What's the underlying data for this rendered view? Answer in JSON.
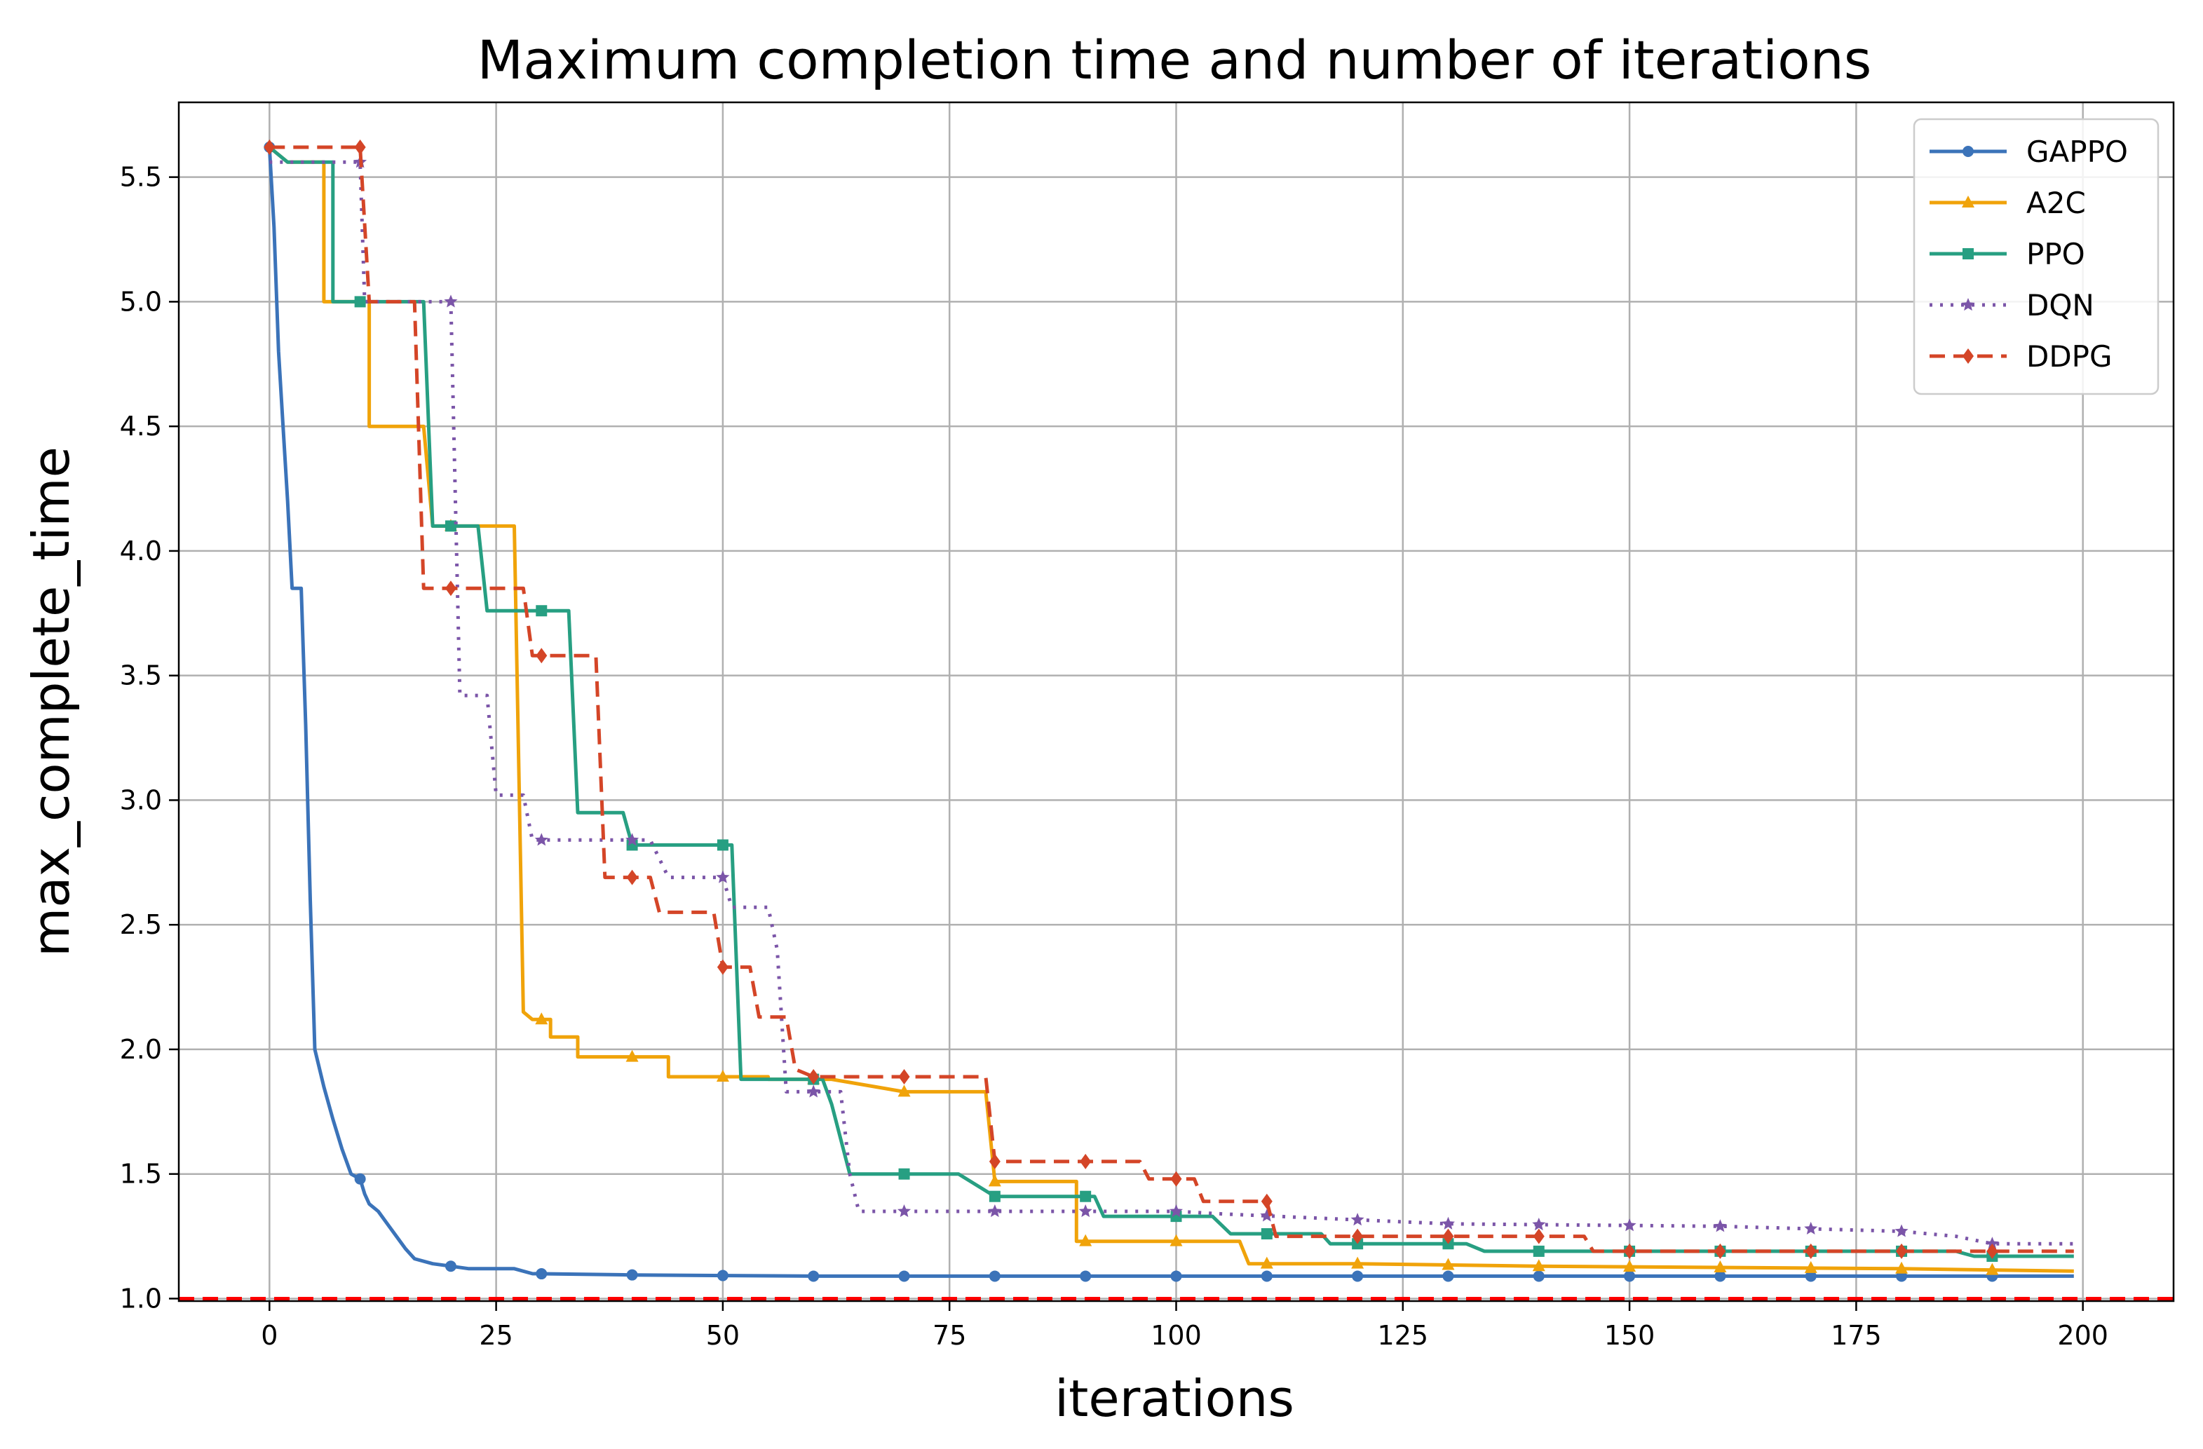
{
  "chart_data": {
    "type": "line",
    "title": "Maximum completion time and number of iterations",
    "xlabel": "iterations",
    "ylabel": "max_complete_time",
    "xlim": [
      -10,
      210
    ],
    "ylim": [
      0.99,
      5.8
    ],
    "x_ticks": [
      0,
      25,
      50,
      75,
      100,
      125,
      150,
      175,
      200
    ],
    "y_ticks": [
      1.0,
      1.5,
      2.0,
      2.5,
      3.0,
      3.5,
      4.0,
      4.5,
      5.0,
      5.5
    ],
    "x_tick_labels": [
      "0",
      "25",
      "50",
      "75",
      "100",
      "125",
      "150",
      "175",
      "200"
    ],
    "y_tick_labels": [
      "1.0",
      "1.5",
      "2.0",
      "2.5",
      "3.0",
      "3.5",
      "4.0",
      "4.5",
      "5.0",
      "5.5"
    ],
    "grid": true,
    "legend_position": "top-right",
    "reference_line": {
      "y": 1.0,
      "color": "#ff0000",
      "style": "dashed"
    },
    "series": [
      {
        "name": "GAPPO",
        "color": "#3b73b9",
        "dash": "solid",
        "marker": "circle",
        "points": [
          [
            0,
            5.62
          ],
          [
            0.5,
            5.3
          ],
          [
            1,
            4.8
          ],
          [
            1.5,
            4.5
          ],
          [
            2,
            4.2
          ],
          [
            2.5,
            3.85
          ],
          [
            3.5,
            3.85
          ],
          [
            4,
            3.3
          ],
          [
            4.5,
            2.6
          ],
          [
            5,
            2.0
          ],
          [
            6,
            1.85
          ],
          [
            7,
            1.72
          ],
          [
            8,
            1.6
          ],
          [
            9,
            1.5
          ],
          [
            10,
            1.48
          ],
          [
            10.5,
            1.42
          ],
          [
            11,
            1.38
          ],
          [
            12,
            1.35
          ],
          [
            13,
            1.3
          ],
          [
            14,
            1.25
          ],
          [
            15,
            1.2
          ],
          [
            16,
            1.16
          ],
          [
            18,
            1.14
          ],
          [
            20,
            1.13
          ],
          [
            22,
            1.12
          ],
          [
            27,
            1.12
          ],
          [
            29,
            1.1
          ],
          [
            40,
            1.095
          ],
          [
            60,
            1.09
          ],
          [
            100,
            1.09
          ],
          [
            199,
            1.09
          ]
        ],
        "marker_x": [
          0,
          10,
          20,
          30,
          40,
          50,
          60,
          70,
          80,
          90,
          100,
          110,
          120,
          130,
          140,
          150,
          160,
          170,
          180,
          190
        ]
      },
      {
        "name": "A2C",
        "color": "#f0a30a",
        "dash": "solid",
        "marker": "triangle",
        "points": [
          [
            0,
            5.62
          ],
          [
            2,
            5.56
          ],
          [
            6,
            5.56
          ],
          [
            6,
            5.0
          ],
          [
            11,
            5.0
          ],
          [
            11,
            4.5
          ],
          [
            17,
            4.5
          ],
          [
            18,
            4.1
          ],
          [
            27,
            4.1
          ],
          [
            28,
            2.15
          ],
          [
            29,
            2.12
          ],
          [
            31,
            2.12
          ],
          [
            31,
            2.05
          ],
          [
            34,
            2.05
          ],
          [
            34,
            1.97
          ],
          [
            44,
            1.97
          ],
          [
            44,
            1.89
          ],
          [
            55,
            1.89
          ],
          [
            55,
            1.88
          ],
          [
            62,
            1.88
          ],
          [
            70,
            1.83
          ],
          [
            79,
            1.83
          ],
          [
            80,
            1.47
          ],
          [
            89,
            1.47
          ],
          [
            89,
            1.23
          ],
          [
            107,
            1.23
          ],
          [
            108,
            1.14
          ],
          [
            120,
            1.14
          ],
          [
            140,
            1.13
          ],
          [
            180,
            1.12
          ],
          [
            199,
            1.11
          ]
        ],
        "marker_x": [
          20,
          30,
          40,
          50,
          60,
          70,
          80,
          90,
          100,
          110,
          120,
          130,
          140,
          150,
          160,
          170,
          180,
          190
        ]
      },
      {
        "name": "PPO",
        "color": "#279f82",
        "dash": "solid",
        "marker": "square",
        "points": [
          [
            0,
            5.62
          ],
          [
            2,
            5.56
          ],
          [
            7,
            5.56
          ],
          [
            7,
            5.0
          ],
          [
            17,
            5.0
          ],
          [
            18,
            4.1
          ],
          [
            23,
            4.1
          ],
          [
            24,
            3.76
          ],
          [
            33,
            3.76
          ],
          [
            34,
            2.95
          ],
          [
            39,
            2.95
          ],
          [
            40,
            2.82
          ],
          [
            51,
            2.82
          ],
          [
            52,
            1.88
          ],
          [
            61,
            1.88
          ],
          [
            62,
            1.78
          ],
          [
            64,
            1.5
          ],
          [
            76,
            1.5
          ],
          [
            80,
            1.41
          ],
          [
            91,
            1.41
          ],
          [
            92,
            1.33
          ],
          [
            104,
            1.33
          ],
          [
            106,
            1.26
          ],
          [
            116,
            1.26
          ],
          [
            117,
            1.22
          ],
          [
            132,
            1.22
          ],
          [
            134,
            1.19
          ],
          [
            170,
            1.19
          ],
          [
            186,
            1.19
          ],
          [
            188,
            1.17
          ],
          [
            199,
            1.17
          ]
        ],
        "marker_x": [
          10,
          20,
          30,
          40,
          50,
          60,
          70,
          80,
          90,
          100,
          110,
          120,
          130,
          140,
          150,
          160,
          170,
          180,
          190
        ]
      },
      {
        "name": "DQN",
        "color": "#7b55a8",
        "dash": "dotted",
        "marker": "star",
        "points": [
          [
            0,
            5.56
          ],
          [
            10,
            5.56
          ],
          [
            10.5,
            5.0
          ],
          [
            20,
            5.0
          ],
          [
            21,
            3.42
          ],
          [
            24,
            3.42
          ],
          [
            25,
            3.02
          ],
          [
            28,
            3.02
          ],
          [
            29,
            2.84
          ],
          [
            42,
            2.84
          ],
          [
            44,
            2.69
          ],
          [
            50,
            2.69
          ],
          [
            51,
            2.57
          ],
          [
            55,
            2.57
          ],
          [
            56,
            2.4
          ],
          [
            57,
            1.83
          ],
          [
            63,
            1.83
          ],
          [
            64,
            1.5
          ],
          [
            65,
            1.35
          ],
          [
            100,
            1.35
          ],
          [
            105,
            1.34
          ],
          [
            130,
            1.3
          ],
          [
            160,
            1.29
          ],
          [
            180,
            1.27
          ],
          [
            186,
            1.25
          ],
          [
            190,
            1.22
          ],
          [
            199,
            1.22
          ]
        ],
        "marker_x": [
          10,
          20,
          30,
          40,
          50,
          60,
          70,
          80,
          90,
          100,
          110,
          120,
          130,
          140,
          150,
          160,
          170,
          180,
          190
        ]
      },
      {
        "name": "DDPG",
        "color": "#d44527",
        "dash": "dashed",
        "marker": "diamond",
        "points": [
          [
            0,
            5.62
          ],
          [
            10,
            5.62
          ],
          [
            11,
            5.0
          ],
          [
            16,
            5.0
          ],
          [
            17,
            3.85
          ],
          [
            28,
            3.85
          ],
          [
            29,
            3.58
          ],
          [
            36,
            3.58
          ],
          [
            37,
            2.69
          ],
          [
            42,
            2.69
          ],
          [
            43,
            2.55
          ],
          [
            49,
            2.55
          ],
          [
            50,
            2.33
          ],
          [
            53,
            2.33
          ],
          [
            54,
            2.13
          ],
          [
            57,
            2.13
          ],
          [
            58,
            1.92
          ],
          [
            60,
            1.89
          ],
          [
            79,
            1.89
          ],
          [
            80,
            1.55
          ],
          [
            96,
            1.55
          ],
          [
            97,
            1.48
          ],
          [
            102,
            1.48
          ],
          [
            103,
            1.39
          ],
          [
            110,
            1.39
          ],
          [
            111,
            1.25
          ],
          [
            145,
            1.25
          ],
          [
            146,
            1.19
          ],
          [
            199,
            1.19
          ]
        ],
        "marker_x": [
          0,
          10,
          20,
          30,
          40,
          50,
          60,
          70,
          80,
          90,
          100,
          110,
          120,
          130,
          140,
          150,
          160,
          170,
          180,
          190
        ]
      }
    ]
  }
}
